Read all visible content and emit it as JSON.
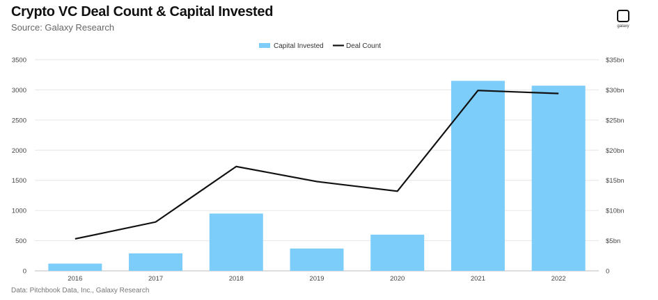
{
  "header": {
    "title": "Crypto VC Deal Count & Capital Invested",
    "subtitle": "Source: Galaxy Research",
    "logo_text": "galaxy"
  },
  "footer": {
    "source": "Data: Pitchbook Data, Inc., Galaxy Research"
  },
  "chart_data": {
    "type": "bar",
    "title": "Crypto VC Deal Count & Capital Invested",
    "subtitle": "Source: Galaxy Research",
    "categories": [
      "2016",
      "2017",
      "2018",
      "2019",
      "2020",
      "2021",
      "2022"
    ],
    "series": [
      {
        "name": "Capital Invested",
        "type": "bar",
        "axis": "right",
        "unit": "$bn",
        "color": "#7dcdfb",
        "values": [
          1.2,
          2.9,
          9.5,
          3.7,
          6.0,
          31.5,
          30.7
        ]
      },
      {
        "name": "Deal Count",
        "type": "line",
        "axis": "left",
        "color": "#111111",
        "values": [
          530,
          810,
          1730,
          1480,
          1320,
          2990,
          2940
        ]
      }
    ],
    "y_left": {
      "min": 0,
      "max": 3500,
      "ticks": [
        "0",
        "500",
        "1000",
        "1500",
        "2000",
        "2500",
        "3000",
        "3500"
      ]
    },
    "y_right": {
      "min": 0,
      "max": 35,
      "ticks": [
        "0",
        "$5bn",
        "$10bn",
        "$15bn",
        "$20bn",
        "$25bn",
        "$30bn",
        "$35bn"
      ]
    },
    "grid": true,
    "legend": "top-center"
  }
}
